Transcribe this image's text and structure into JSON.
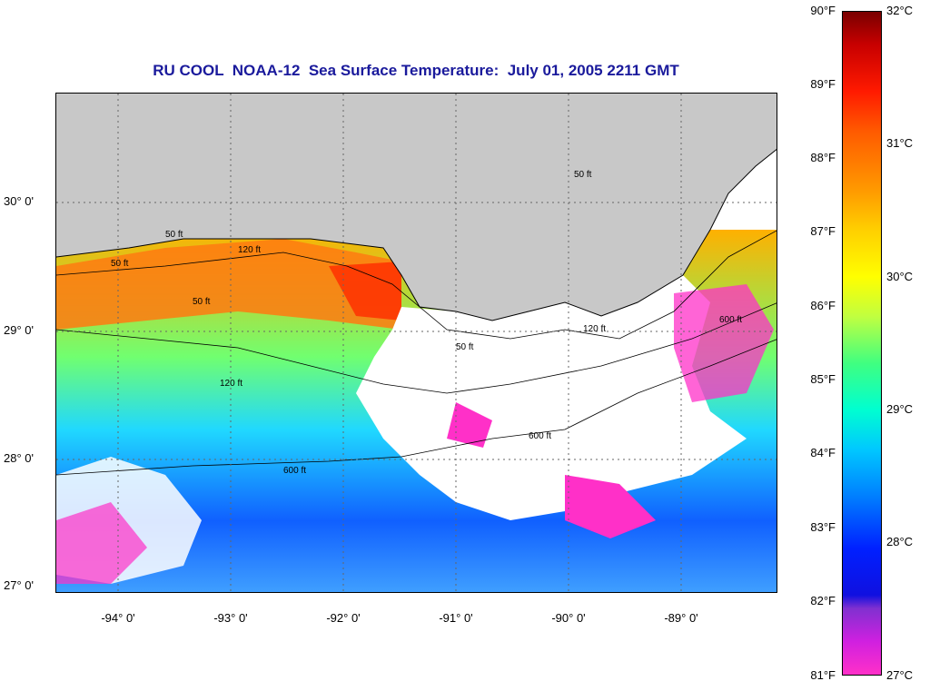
{
  "title": "RU COOL  NOAA-12  Sea Surface Temperature:  July 01, 2005 2211 GMT",
  "map": {
    "lat_labels": [
      "30° 0'",
      "29° 0'",
      "28° 0'",
      "27° 0'"
    ],
    "lon_labels": [
      "-94° 0'",
      "-93° 0'",
      "-92° 0'",
      "-91° 0'",
      "-90° 0'",
      "-89° 0'"
    ],
    "contour_labels": [
      "50 ft",
      "50 ft",
      "50 ft",
      "50 ft",
      "120 ft",
      "120 ft",
      "600 ft",
      "600 ft",
      "50 ft",
      "120 ft",
      "600 ft"
    ],
    "land_color": "#c8c8c8",
    "cloud_color": "#ffffff"
  },
  "colorbar": {
    "fahrenheit_labels": [
      "90°F",
      "89°F",
      "88°F",
      "87°F",
      "86°F",
      "85°F",
      "84°F",
      "83°F",
      "82°F",
      "81°F"
    ],
    "celsius_labels": [
      "32°C",
      "31°C",
      "30°C",
      "29°C",
      "28°C",
      "27°C"
    ]
  }
}
